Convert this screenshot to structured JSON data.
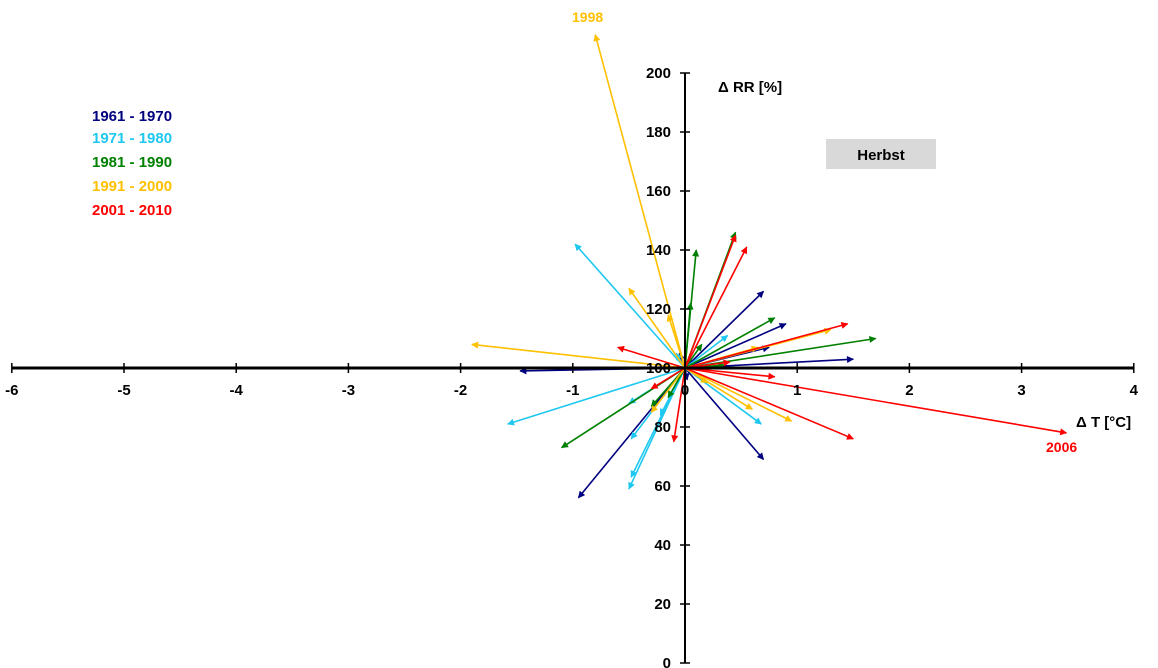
{
  "chart_data": {
    "type": "vector",
    "x_label": "Δ T [°C]",
    "y_label": "Δ RR [%]",
    "season_label": "Herbst",
    "xlim": [
      -6,
      4
    ],
    "ylim": [
      0,
      200
    ],
    "origin": [
      0,
      100
    ],
    "x_ticks": [
      -6,
      -5,
      -4,
      -3,
      -2,
      -1,
      0,
      1,
      2,
      3,
      4
    ],
    "y_ticks": [
      0,
      20,
      40,
      60,
      80,
      100,
      120,
      140,
      160,
      180,
      200
    ],
    "x_tick_labels": [
      "-6",
      "-5",
      "-4",
      "-3",
      "-2",
      "-1",
      "0",
      "1",
      "2",
      "3",
      "4"
    ],
    "y_tick_labels": [
      "0",
      "20",
      "40",
      "60",
      "80",
      "100",
      "120",
      "140",
      "160",
      "180",
      "200"
    ],
    "colors": {
      "1961 - 1970": "#000080",
      "1971 - 1980": "#1EC8F0",
      "1981 - 1990": "#008000",
      "1991 - 2000": "#FFC000",
      "2001 - 2010": "#FF0000"
    },
    "legend": [
      "1961 - 1970",
      "1971 - 1980",
      "1981 - 1990",
      "1991 - 2000",
      "2001 - 2010"
    ],
    "annotations": [
      {
        "text": "1998",
        "x": -0.8,
        "y": 219,
        "color": "#FFC000"
      },
      {
        "text": "2006",
        "x": 3.5,
        "y": 74,
        "color": "#FF0000"
      }
    ],
    "series": [
      {
        "name": "1961 - 1970",
        "vectors": [
          [
            -1.47,
            99
          ],
          [
            0.7,
            126
          ],
          [
            0.9,
            115
          ],
          [
            1.5,
            103
          ],
          [
            0.7,
            69
          ],
          [
            -0.95,
            56
          ],
          [
            0.75,
            107
          ],
          [
            0.05,
            103
          ],
          [
            -0.05,
            105
          ],
          [
            0.02,
            96
          ]
        ]
      },
      {
        "name": "1971 - 1980",
        "vectors": [
          [
            -0.98,
            142
          ],
          [
            -1.58,
            81
          ],
          [
            -0.48,
            76
          ],
          [
            -0.48,
            63
          ],
          [
            0.68,
            81
          ],
          [
            -0.08,
            105
          ],
          [
            0.38,
            111
          ],
          [
            -0.5,
            59
          ],
          [
            -0.22,
            84
          ],
          [
            -0.5,
            88
          ]
        ]
      },
      {
        "name": "1981 - 1990",
        "vectors": [
          [
            0.1,
            140
          ],
          [
            0.45,
            146
          ],
          [
            0.8,
            117
          ],
          [
            1.7,
            110
          ],
          [
            -1.1,
            73
          ],
          [
            0.35,
            101
          ],
          [
            0.05,
            122
          ],
          [
            -0.3,
            87
          ],
          [
            0.15,
            108
          ],
          [
            -0.15,
            90
          ]
        ]
      },
      {
        "name": "1991 - 2000",
        "vectors": [
          [
            -0.8,
            213
          ],
          [
            -1.9,
            108
          ],
          [
            -0.5,
            127
          ],
          [
            -0.15,
            118
          ],
          [
            0.65,
            107
          ],
          [
            0.95,
            82
          ],
          [
            0.6,
            86
          ],
          [
            1.3,
            113
          ],
          [
            0.2,
            95
          ],
          [
            -0.3,
            85
          ]
        ]
      },
      {
        "name": "2001 - 2010",
        "vectors": [
          [
            0.45,
            145
          ],
          [
            0.55,
            141
          ],
          [
            1.45,
            115
          ],
          [
            1.5,
            76
          ],
          [
            3.4,
            78
          ],
          [
            0.8,
            97
          ],
          [
            -0.6,
            107
          ],
          [
            -0.1,
            75
          ],
          [
            -0.3,
            93
          ],
          [
            0.4,
            102
          ]
        ]
      }
    ]
  }
}
